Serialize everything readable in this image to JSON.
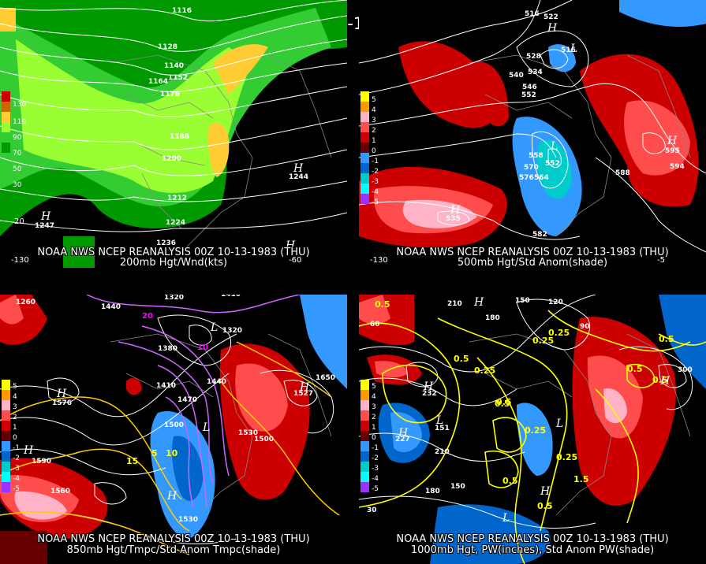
{
  "title": "00Z 10-13-1983 (THU)",
  "panels": [
    {
      "id": "p200",
      "caption_line1": "NOAA NWS NCEP REANALYSIS 00Z 10-13-1983 (THU)",
      "caption_line2": "200mb Hgt/Wnd(kts)",
      "legend_labels": [
        "130",
        "110",
        "90",
        "70",
        "50",
        "30"
      ],
      "legend_colors": [
        "#cc0000",
        "#cc6600",
        "#ffcc33",
        "#99ff33",
        "#33cc33",
        "#009900"
      ],
      "contour_labels": [
        "1116",
        "1128",
        "1140",
        "1152",
        "1164",
        "1176",
        "1188",
        "1176",
        "1200",
        "1212",
        "1224",
        "1236",
        "1247",
        "1244"
      ],
      "centers": [
        "H",
        "H",
        "H"
      ],
      "axis_labels": [
        "20",
        "-130",
        "-60"
      ]
    },
    {
      "id": "p500",
      "caption_line1": "NOAA NWS NCEP REANALYSIS 00Z 10-13-1983 (THU)",
      "caption_line2": "500mb Hgt/Std Anom(shade)",
      "legend_labels": [
        "5",
        "4",
        "3",
        "2",
        "1",
        "0",
        "-1",
        "-2",
        "-3",
        "-4",
        "-5"
      ],
      "legend_colors": [
        "#ffff00",
        "#ff9900",
        "#ffb3c6",
        "#ff4d4d",
        "#cc0000",
        "#660000",
        "#3399ff",
        "#0066cc",
        "#00cccc",
        "#00ffff",
        "#9933ff"
      ],
      "contour_labels": [
        "516",
        "522",
        "528",
        "516",
        "534",
        "540",
        "546",
        "552",
        "558",
        "570",
        "576",
        "564",
        "552",
        "582",
        "588",
        "594",
        "595",
        "535"
      ],
      "centers": [
        "H",
        "L",
        "H",
        "H",
        "L"
      ],
      "axis_labels": [
        "-130",
        "-5"
      ]
    },
    {
      "id": "p850",
      "caption_line1": "NOAA NWS NCEP REANALYSIS 00Z 10-13-1983 (THU)",
      "caption_line2": "850mb Hgt/Tmpc/Std Anom Tmpc(shade)",
      "legend_labels": [
        "5",
        "4",
        "3",
        "2",
        "1",
        "0",
        "-1",
        "-2",
        "-3",
        "-4",
        "-5"
      ],
      "legend_colors": [
        "#ffff00",
        "#ff9900",
        "#ffb3c6",
        "#ff4d4d",
        "#cc0000",
        "#660000",
        "#3399ff",
        "#0066cc",
        "#00cccc",
        "#00ffff",
        "#9933ff"
      ],
      "contour_labels": [
        "1260",
        "1320",
        "1410",
        "1440",
        "1380",
        "1410",
        "1470",
        "1500",
        "1530",
        "1560",
        "1590",
        "1650",
        "1530",
        "1500",
        "1440",
        "1320",
        "1576",
        "1527"
      ],
      "temp_labels": [
        "10",
        "20",
        "5",
        "10",
        "15"
      ],
      "centers": [
        "H",
        "L",
        "H",
        "H",
        "L",
        "H"
      ]
    },
    {
      "id": "p1000",
      "caption_line1": "NOAA NWS NCEP REANALYSIS 00Z 10-13-1983 (THU)",
      "caption_line2": "1000mb Hgt, PW(inches), Std Anom PW(shade)",
      "legend_labels": [
        "5",
        "4",
        "3",
        "2",
        "1",
        "0",
        "-1",
        "-2",
        "-3",
        "-4",
        "-5"
      ],
      "legend_colors": [
        "#ffff00",
        "#ff9900",
        "#ffb3c6",
        "#ff4d4d",
        "#cc0000",
        "#660000",
        "#3399ff",
        "#0066cc",
        "#00cccc",
        "#00ffff",
        "#9933ff"
      ],
      "contour_labels": [
        "210",
        "180",
        "150",
        "120",
        "90",
        "60",
        "30",
        "300",
        "232",
        "227",
        "151",
        "210",
        "180",
        "150"
      ],
      "pw_labels": [
        "0.5",
        "0.25",
        "0.25",
        "0.5",
        "0.25",
        "0.5",
        "0.25",
        "0.5",
        "0.5",
        "0.5",
        "1.5",
        "0.5",
        "0.25",
        "0.5",
        "0.5"
      ],
      "centers": [
        "H",
        "L",
        "H",
        "H",
        "L",
        "H",
        "L",
        "H"
      ]
    }
  ]
}
